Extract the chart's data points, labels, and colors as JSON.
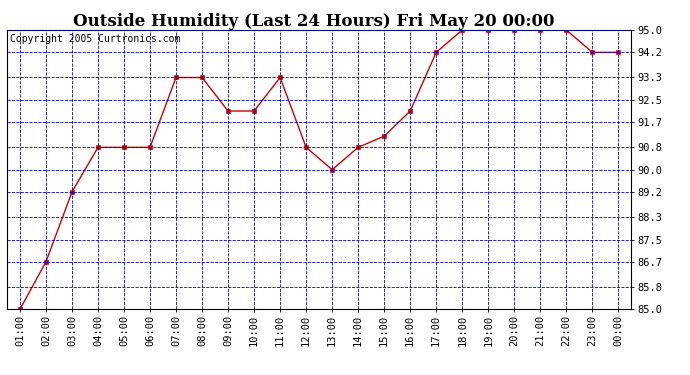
{
  "title": "Outside Humidity (Last 24 Hours) Fri May 20 00:00",
  "copyright": "Copyright 2005 Curtronics.com",
  "x_labels": [
    "01:00",
    "02:00",
    "03:00",
    "04:00",
    "05:00",
    "06:00",
    "07:00",
    "08:00",
    "09:00",
    "10:00",
    "11:00",
    "12:00",
    "13:00",
    "14:00",
    "15:00",
    "16:00",
    "17:00",
    "18:00",
    "19:00",
    "20:00",
    "21:00",
    "22:00",
    "23:00",
    "00:00"
  ],
  "x_values": [
    1,
    2,
    3,
    4,
    5,
    6,
    7,
    8,
    9,
    10,
    11,
    12,
    13,
    14,
    15,
    16,
    17,
    18,
    19,
    20,
    21,
    22,
    23,
    24
  ],
  "y_values": [
    85.0,
    86.7,
    89.2,
    90.8,
    90.8,
    90.8,
    93.3,
    93.3,
    92.1,
    92.1,
    93.3,
    90.8,
    90.0,
    90.8,
    91.2,
    92.1,
    94.2,
    95.0,
    95.0,
    95.0,
    95.0,
    95.0,
    94.2,
    94.2
  ],
  "ylim": [
    85.0,
    95.0
  ],
  "yticks": [
    85.0,
    85.8,
    86.7,
    87.5,
    88.3,
    89.2,
    90.0,
    90.8,
    91.7,
    92.5,
    93.3,
    94.2,
    95.0
  ],
  "line_color": "#cc0000",
  "marker_color": "#cc0000",
  "bg_color": "#ffffff",
  "plot_bg_color": "#ffffff",
  "grid_color": "#0000cc",
  "title_fontsize": 12,
  "copyright_fontsize": 7,
  "tick_label_fontsize": 7.5
}
